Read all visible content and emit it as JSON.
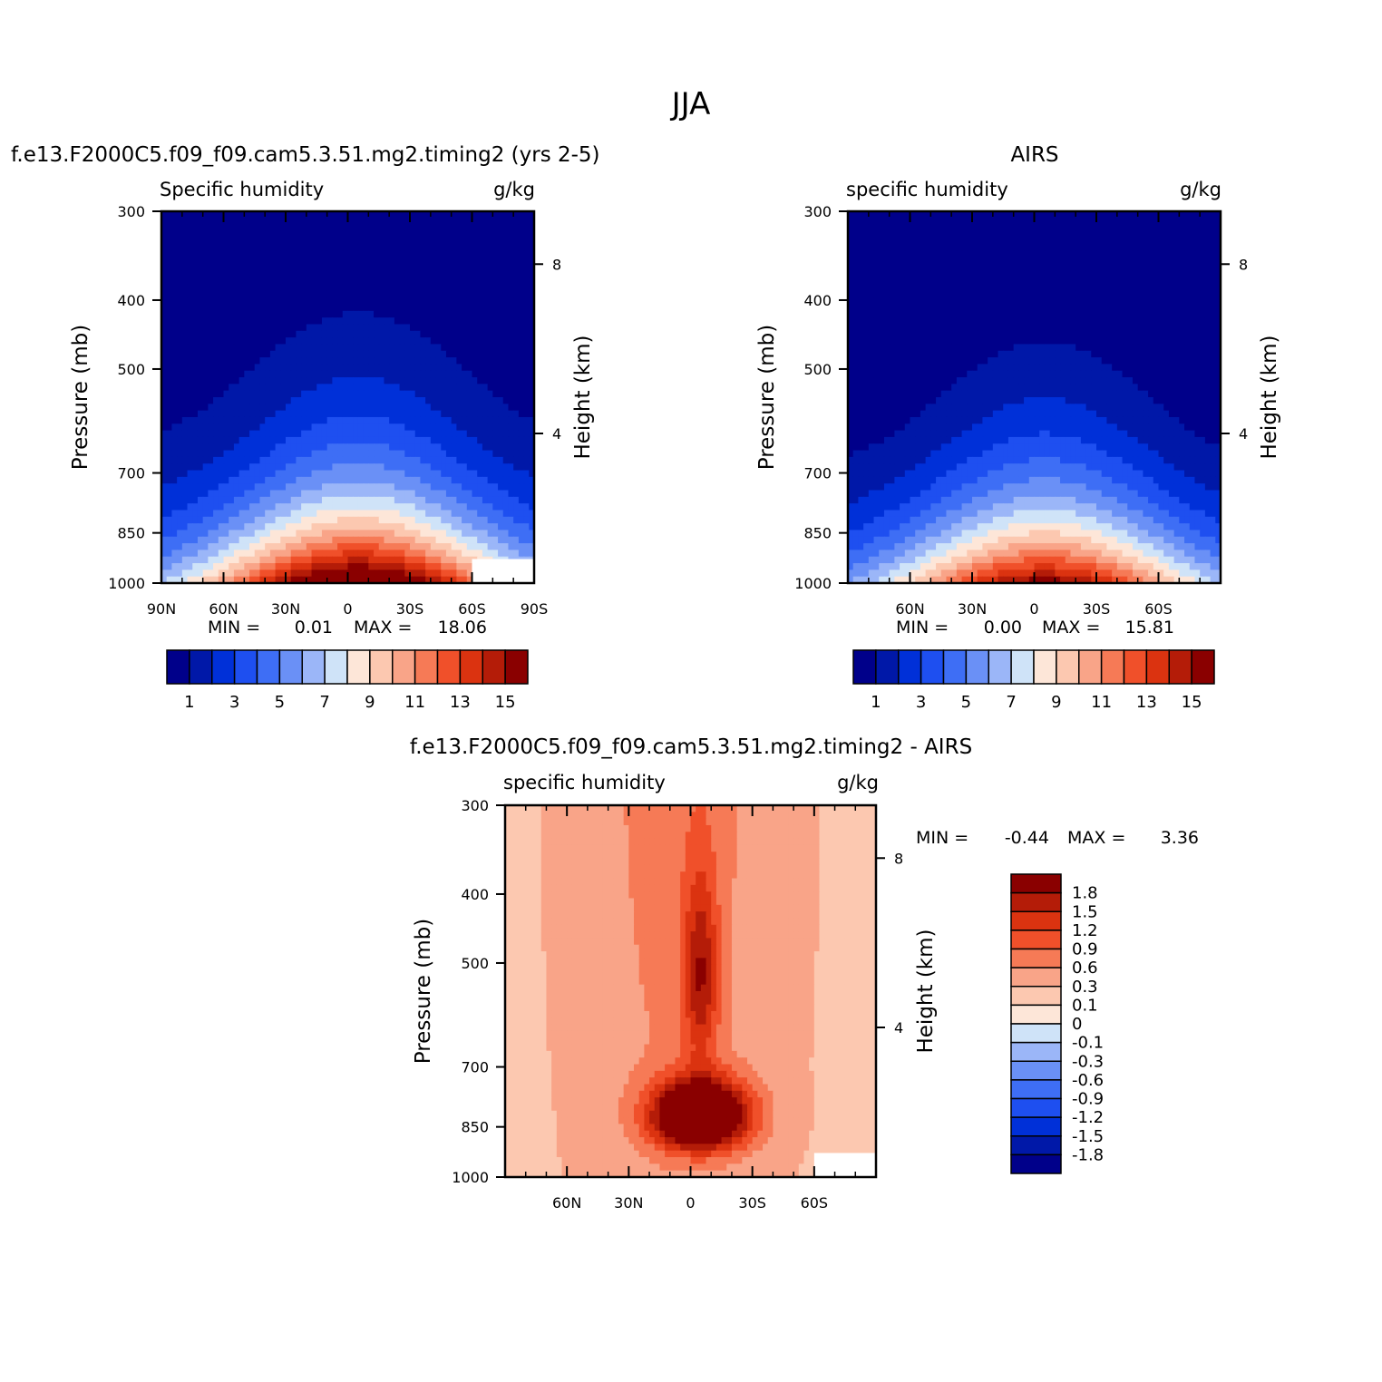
{
  "figure": {
    "title": "JJA"
  },
  "colors": {
    "model_palette": [
      "#00008a",
      "#0018a8",
      "#0030d8",
      "#1e4ff0",
      "#3e6ef5",
      "#6a90f6",
      "#9bb6f8",
      "#cfe3f8",
      "#fde6d8",
      "#fcc8b0",
      "#f9a488",
      "#f67a56",
      "#f0502a",
      "#db3310",
      "#b41c08",
      "#8a0000"
    ],
    "diff_palette": [
      "#8a0000",
      "#b41c08",
      "#db3310",
      "#f0502a",
      "#f67a56",
      "#f9a488",
      "#fcc8b0",
      "#fde6d8",
      "#cfe3f8",
      "#9bb6f8",
      "#6a90f6",
      "#3e6ef5",
      "#1e4ff0",
      "#0030d8",
      "#0018a8",
      "#00008a"
    ]
  },
  "chart_data": [
    {
      "id": "model",
      "type": "contour",
      "title": "f.e13.F2000C5.f09_f09.cam5.3.51.mg2.timing2 (yrs 2-5)",
      "variable": "Specific humidity",
      "units": "g/kg",
      "ylabel": "Pressure (mb)",
      "y2label": "Height (km)",
      "x_ticks": [
        "90N",
        "60N",
        "30N",
        "0",
        "30S",
        "60S",
        "90S"
      ],
      "x_values": [
        90,
        60,
        30,
        0,
        -30,
        -60,
        -90
      ],
      "xlim": [
        90,
        -90
      ],
      "y_ticks": [
        "300",
        "400",
        "500",
        "700",
        "850",
        "1000"
      ],
      "y_values": [
        300,
        400,
        500,
        700,
        850,
        1000
      ],
      "ylim": [
        300,
        1000
      ],
      "y2_ticks": [
        "8",
        "4"
      ],
      "min_label": "MIN =",
      "min_value": "0.01",
      "max_label": "MAX =",
      "max_value": "18.06",
      "colorbar_labels": [
        "1",
        "3",
        "5",
        "7",
        "9",
        "11",
        "13",
        "15"
      ],
      "peak": {
        "lat": -5,
        "value": 18.06
      },
      "missing_region": "surface south of 60S"
    },
    {
      "id": "obs",
      "type": "contour",
      "title": "AIRS",
      "variable": "specific humidity",
      "units": "g/kg",
      "ylabel": "Pressure (mb)",
      "y2label": "Height (km)",
      "x_ticks": [
        "60N",
        "30N",
        "0",
        "30S",
        "60S"
      ],
      "x_values": [
        60,
        30,
        0,
        -30,
        -60
      ],
      "xlim": [
        90,
        -90
      ],
      "y_ticks": [
        "300",
        "400",
        "500",
        "700",
        "850",
        "1000"
      ],
      "y_values": [
        300,
        400,
        500,
        700,
        850,
        1000
      ],
      "ylim": [
        300,
        1000
      ],
      "y2_ticks": [
        "8",
        "4"
      ],
      "min_label": "MIN =",
      "min_value": "0.00",
      "max_label": "MAX =",
      "max_value": "15.81",
      "colorbar_labels": [
        "1",
        "3",
        "5",
        "7",
        "9",
        "11",
        "13",
        "15"
      ],
      "peak": {
        "lat": -5,
        "value": 15.81
      }
    },
    {
      "id": "diff",
      "type": "contour",
      "title": "f.e13.F2000C5.f09_f09.cam5.3.51.mg2.timing2 - AIRS",
      "variable": "specific humidity",
      "units": "g/kg",
      "ylabel": "Pressure (mb)",
      "y2label": "Height (km)",
      "x_ticks": [
        "60N",
        "30N",
        "0",
        "30S",
        "60S"
      ],
      "x_values": [
        60,
        30,
        0,
        -30,
        -60
      ],
      "xlim": [
        90,
        -90
      ],
      "y_ticks": [
        "300",
        "400",
        "500",
        "700",
        "850",
        "1000"
      ],
      "y_values": [
        300,
        400,
        500,
        700,
        850,
        1000
      ],
      "ylim": [
        300,
        1000
      ],
      "y2_ticks": [
        "8",
        "4"
      ],
      "min_label": "MIN =",
      "min_value": "-0.44",
      "max_label": "MAX =",
      "max_value": "3.36",
      "colorbar_labels": [
        "1.8",
        "1.5",
        "1.2",
        "0.9",
        "0.6",
        "0.3",
        "0.1",
        "0",
        "-0.1",
        "-0.3",
        "-0.6",
        "-0.9",
        "-1.2",
        "-1.5",
        "-1.8"
      ],
      "peak": {
        "lat": -5,
        "pressure": 850,
        "value": 3.36
      }
    }
  ]
}
